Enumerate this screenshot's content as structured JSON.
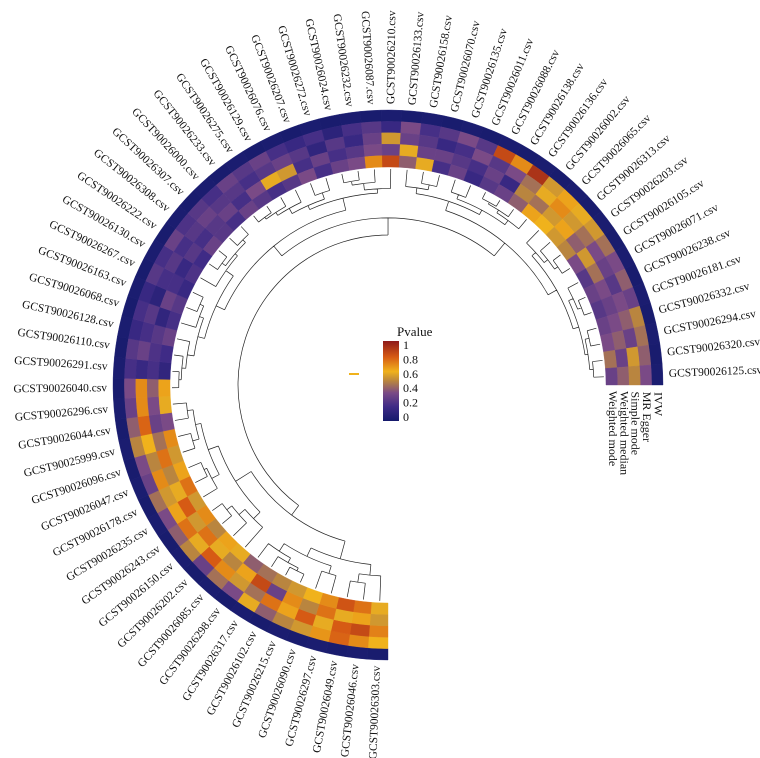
{
  "chart_data": {
    "type": "heatmap",
    "layout": "circular",
    "legend": {
      "title": "Pvalue",
      "ticks": [
        "1",
        "0.8",
        "0.6",
        "0.4",
        "0.2",
        "0"
      ],
      "placement": "center",
      "stops": [
        "#141a6b",
        "#3f2b86",
        "#7a4a86",
        "#b9853f",
        "#f0b21c",
        "#d65a14",
        "#8e1a1a"
      ]
    },
    "methods": [
      "IVW",
      "MR Egger",
      "Simple mode",
      "Weighted median",
      "Weighted mode"
    ],
    "rows": [
      {
        "name": "GCST90026303.csv",
        "values": [
          0.02,
          0.62,
          0.72,
          0.55,
          0.6
        ]
      },
      {
        "name": "GCST90026046.csv",
        "values": [
          0.03,
          0.7,
          0.85,
          0.65,
          0.75
        ]
      },
      {
        "name": "GCST90026049.csv",
        "values": [
          0.02,
          0.78,
          0.8,
          0.6,
          0.82
        ]
      },
      {
        "name": "GCST90026297.csv",
        "values": [
          0.03,
          0.68,
          0.6,
          0.75,
          0.7
        ]
      },
      {
        "name": "GCST90026090.csv",
        "values": [
          0.02,
          0.55,
          0.8,
          0.5,
          0.62
        ]
      },
      {
        "name": "GCST90026215.csv",
        "values": [
          0.03,
          0.5,
          0.65,
          0.7,
          0.55
        ]
      },
      {
        "name": "GCST90026102.csv",
        "values": [
          0.02,
          0.4,
          0.75,
          0.3,
          0.5
        ]
      },
      {
        "name": "GCST90026317.csv",
        "values": [
          0.03,
          0.6,
          0.45,
          0.85,
          0.45
        ]
      },
      {
        "name": "GCST90026298.csv",
        "values": [
          0.02,
          0.35,
          0.55,
          0.65,
          0.4
        ]
      },
      {
        "name": "GCST90026085.csv",
        "values": [
          0.03,
          0.45,
          0.7,
          0.5,
          0.6
        ]
      },
      {
        "name": "GCST90026202.csv",
        "values": [
          0.02,
          0.3,
          0.8,
          0.6,
          0.65
        ]
      },
      {
        "name": "GCST90026150.csv",
        "values": [
          0.03,
          0.5,
          0.6,
          0.75,
          0.5
        ]
      },
      {
        "name": "GCST90026243.csv",
        "values": [
          0.02,
          0.4,
          0.75,
          0.55,
          0.7
        ]
      },
      {
        "name": "GCST90026235.csv",
        "values": [
          0.03,
          0.35,
          0.65,
          0.8,
          0.55
        ]
      },
      {
        "name": "GCST90026178.csv",
        "values": [
          0.02,
          0.45,
          0.55,
          0.6,
          0.75
        ]
      },
      {
        "name": "GCST90026047.csv",
        "values": [
          0.03,
          0.3,
          0.7,
          0.5,
          0.65
        ]
      },
      {
        "name": "GCST90026096.csv",
        "values": [
          0.02,
          0.35,
          0.5,
          0.75,
          0.55
        ]
      },
      {
        "name": "GCST90025999.csv",
        "values": [
          0.03,
          0.5,
          0.62,
          0.45,
          0.7
        ]
      },
      {
        "name": "GCST90026044.csv",
        "values": [
          0.02,
          0.4,
          0.78,
          0.3,
          0.35
        ]
      },
      {
        "name": "GCST90026296.csv",
        "values": [
          0.03,
          0.3,
          0.7,
          0.35,
          0.6
        ]
      },
      {
        "name": "GCST90026040.csv",
        "values": [
          0.02,
          0.35,
          0.7,
          0.4,
          0.65
        ]
      },
      {
        "name": "GCST90026291.csv",
        "values": [
          0.03,
          0.2,
          0.15,
          0.2,
          0.12
        ]
      },
      {
        "name": "GCST90026110.csv",
        "values": [
          0.02,
          0.25,
          0.3,
          0.22,
          0.18
        ]
      },
      {
        "name": "GCST90026128.csv",
        "values": [
          0.03,
          0.15,
          0.2,
          0.25,
          0.3
        ]
      },
      {
        "name": "GCST90026068.csv",
        "values": [
          0.02,
          0.2,
          0.25,
          0.12,
          0.2
        ]
      },
      {
        "name": "GCST90026163.csv",
        "values": [
          0.03,
          0.15,
          0.1,
          0.3,
          0.25
        ]
      },
      {
        "name": "GCST90026267.csv",
        "values": [
          0.02,
          0.25,
          0.2,
          0.2,
          0.15
        ]
      },
      {
        "name": "GCST90026130.csv",
        "values": [
          0.03,
          0.2,
          0.25,
          0.15,
          0.22
        ]
      },
      {
        "name": "GCST90026222.csv",
        "values": [
          0.02,
          0.3,
          0.2,
          0.25,
          0.18
        ]
      },
      {
        "name": "GCST90026308.csv",
        "values": [
          0.03,
          0.22,
          0.25,
          0.2,
          0.3
        ]
      },
      {
        "name": "GCST90026307.csv",
        "values": [
          0.02,
          0.25,
          0.3,
          0.25,
          0.25
        ]
      },
      {
        "name": "GCST90026000.csv",
        "values": [
          0.03,
          0.2,
          0.25,
          0.3,
          0.2
        ]
      },
      {
        "name": "GCST90026233.csv",
        "values": [
          0.02,
          0.3,
          0.25,
          0.2,
          0.3
        ]
      },
      {
        "name": "GCST90026275.csv",
        "values": [
          0.03,
          0.25,
          0.2,
          0.35,
          0.25
        ]
      },
      {
        "name": "GCST90026129.csv",
        "values": [
          0.02,
          0.3,
          0.25,
          0.6,
          0.2
        ]
      },
      {
        "name": "GCST90026076.csv",
        "values": [
          0.03,
          0.2,
          0.3,
          0.55,
          0.25
        ]
      },
      {
        "name": "GCST90026207.csv",
        "values": [
          0.02,
          0.15,
          0.25,
          0.2,
          0.35
        ]
      },
      {
        "name": "GCST90026272.csv",
        "values": [
          0.03,
          0.2,
          0.12,
          0.3,
          0.2
        ]
      },
      {
        "name": "GCST90026024.csv",
        "values": [
          0.02,
          0.1,
          0.25,
          0.2,
          0.3
        ]
      },
      {
        "name": "GCST90026232.csv",
        "values": [
          0.03,
          0.2,
          0.15,
          0.25,
          0.35
        ]
      },
      {
        "name": "GCST90026087.csv",
        "values": [
          0.02,
          0.25,
          0.3,
          0.35,
          0.7
        ]
      },
      {
        "name": "GCST90026210.csv",
        "values": [
          0.03,
          0.15,
          0.55,
          0.3,
          0.85
        ]
      },
      {
        "name": "GCST90026133.csv",
        "values": [
          0.02,
          0.35,
          0.3,
          0.6,
          0.4
        ]
      },
      {
        "name": "GCST90026158.csv",
        "values": [
          0.03,
          0.2,
          0.25,
          0.3,
          0.6
        ]
      },
      {
        "name": "GCST90026070.csv",
        "values": [
          0.02,
          0.25,
          0.15,
          0.3,
          0.2
        ]
      },
      {
        "name": "GCST90026135.csv",
        "values": [
          0.03,
          0.35,
          0.2,
          0.25,
          0.3
        ]
      },
      {
        "name": "GCST90026011.csv",
        "values": [
          0.02,
          0.25,
          0.35,
          0.2,
          0.15
        ]
      },
      {
        "name": "GCST90026088.csv",
        "values": [
          0.03,
          0.85,
          0.25,
          0.3,
          0.25
        ]
      },
      {
        "name": "GCST90026138.csv",
        "values": [
          0.02,
          0.7,
          0.35,
          0.15,
          0.3
        ]
      },
      {
        "name": "GCST90026136.csv",
        "values": [
          0.03,
          0.92,
          0.45,
          0.5,
          0.4
        ]
      },
      {
        "name": "GCST90026002.csv",
        "values": [
          0.02,
          0.55,
          0.6,
          0.45,
          0.65
        ]
      },
      {
        "name": "GCST90026065.csv",
        "values": [
          0.03,
          0.65,
          0.7,
          0.55,
          0.62
        ]
      },
      {
        "name": "GCST90026313.csv",
        "values": [
          0.02,
          0.6,
          0.55,
          0.65,
          0.55
        ]
      },
      {
        "name": "GCST90026203.csv",
        "values": [
          0.03,
          0.55,
          0.45,
          0.4,
          0.5
        ]
      },
      {
        "name": "GCST90026105.csv",
        "values": [
          0.02,
          0.45,
          0.35,
          0.55,
          0.35
        ]
      },
      {
        "name": "GCST90026071.csv",
        "values": [
          0.03,
          0.35,
          0.3,
          0.45,
          0.25
        ]
      },
      {
        "name": "GCST90026238.csv",
        "values": [
          0.02,
          0.4,
          0.25,
          0.35,
          0.3
        ]
      },
      {
        "name": "GCST90026181.csv",
        "values": [
          0.03,
          0.3,
          0.35,
          0.3,
          0.25
        ]
      },
      {
        "name": "GCST90026332.csv",
        "values": [
          0.02,
          0.5,
          0.4,
          0.35,
          0.3
        ]
      },
      {
        "name": "GCST90026294.csv",
        "values": [
          0.03,
          0.45,
          0.3,
          0.4,
          0.35
        ]
      },
      {
        "name": "GCST90026320.csv",
        "values": [
          0.02,
          0.4,
          0.55,
          0.3,
          0.45
        ]
      },
      {
        "name": "GCST90026125.csv",
        "values": [
          0.03,
          0.35,
          0.5,
          0.4,
          0.3
        ]
      }
    ]
  }
}
